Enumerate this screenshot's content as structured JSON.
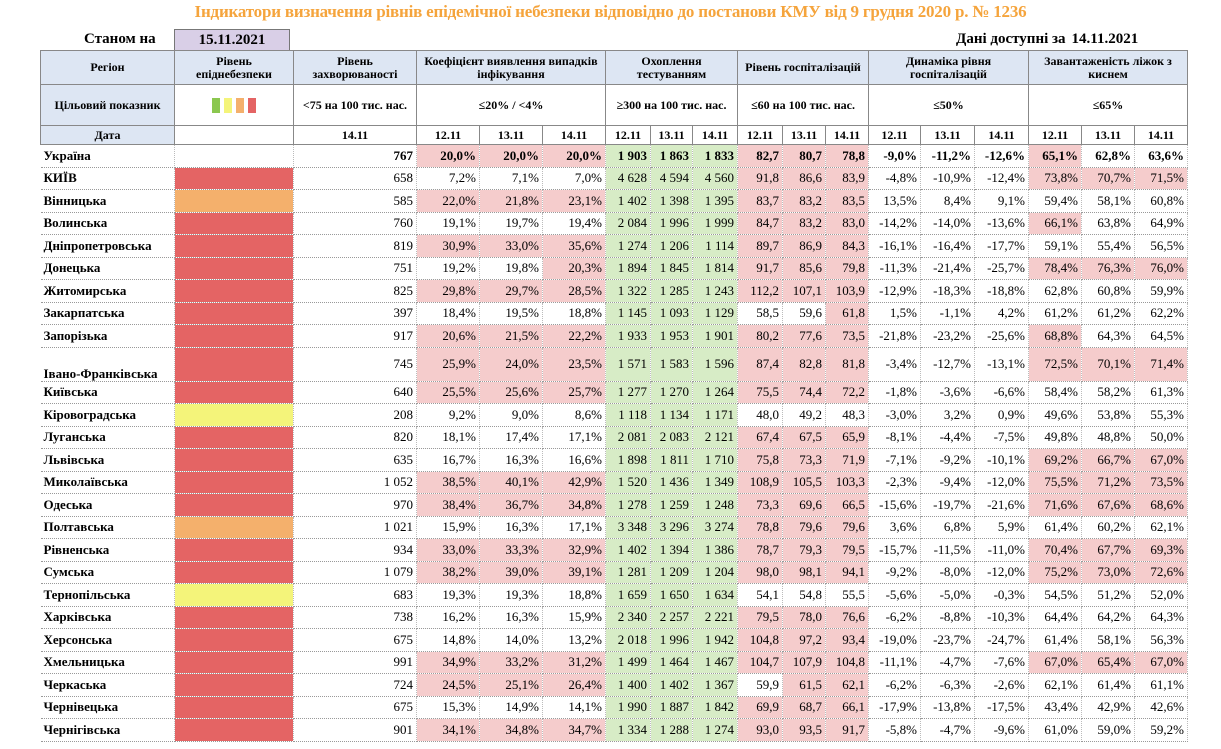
{
  "title": "Індикатори визначення рівнів епідемічної небезпеки відповідно до постанови КМУ від 9 грудня 2020 р. № 1236",
  "as_of_label": "Станом на",
  "as_of_date": "15.11.2021",
  "available_label": "Дані доступні за",
  "available_date": "14.11.2021",
  "headers": {
    "region": "Регіон",
    "level": "Рівень епіднебезпеки",
    "incidence": "Рівень захворюваності",
    "detection": "Коефіцієнт виявлення випадків інфікування",
    "testing": "Охоплення тестуванням",
    "hospitalization": "Рівень госпіталізацій",
    "hosp_dynamics": "Динаміка рівня госпіталізацій",
    "oxygen_beds": "Завантаженість ліжок з киснем"
  },
  "targets": {
    "label": "Цільовий показник",
    "incidence": "<75 на 100 тис. нас.",
    "detection": "≤20% / <4%",
    "testing": "≥300 на 100 тис. нас.",
    "hospitalization": "≤60 на 100 тис. нас.",
    "hosp_dynamics": "≤50%",
    "oxygen_beds": "≤65%"
  },
  "legend_colors": [
    "#8bc74f",
    "#f4f47a",
    "#f4b06c",
    "#e46464"
  ],
  "dates": {
    "label": "Дата",
    "incidence": "14.11",
    "triple": [
      "12.11",
      "13.11",
      "14.11"
    ]
  },
  "ukraine": {
    "name": "Україна",
    "incidence": "767",
    "det": [
      "20,0%",
      "20,0%",
      "20,0%"
    ],
    "test": [
      "1 903",
      "1 863",
      "1 833"
    ],
    "hosp": [
      "82,7",
      "80,7",
      "78,8"
    ],
    "dyn": [
      "-9,0%",
      "-11,2%",
      "-12,6%"
    ],
    "oxy": [
      "65,1%",
      "62,8%",
      "63,6%"
    ]
  },
  "rows": [
    {
      "name": "КИЇВ",
      "lvl": "red",
      "inc": "658",
      "det": [
        "7,2%",
        "7,1%",
        "7,0%"
      ],
      "test": [
        "4 628",
        "4 594",
        "4 560"
      ],
      "hosp": [
        "91,8",
        "86,6",
        "83,9"
      ],
      "dyn": [
        "-4,8%",
        "-10,9%",
        "-12,4%"
      ],
      "oxy": [
        "73,8%",
        "70,7%",
        "71,5%"
      ]
    },
    {
      "name": "Вінницька",
      "lvl": "orange",
      "inc": "585",
      "det": [
        "22,0%",
        "21,8%",
        "23,1%"
      ],
      "test": [
        "1 402",
        "1 398",
        "1 395"
      ],
      "hosp": [
        "83,7",
        "83,2",
        "83,5"
      ],
      "dyn": [
        "13,5%",
        "8,4%",
        "9,1%"
      ],
      "oxy": [
        "59,4%",
        "58,1%",
        "60,8%"
      ]
    },
    {
      "name": "Волинська",
      "lvl": "red",
      "inc": "760",
      "det": [
        "19,1%",
        "19,7%",
        "19,4%"
      ],
      "test": [
        "2 084",
        "1 996",
        "1 999"
      ],
      "hosp": [
        "84,7",
        "83,2",
        "83,0"
      ],
      "dyn": [
        "-14,2%",
        "-14,0%",
        "-13,6%"
      ],
      "oxy": [
        "66,1%",
        "63,8%",
        "64,9%"
      ]
    },
    {
      "name": "Дніпропетровська",
      "lvl": "red",
      "inc": "819",
      "det": [
        "30,9%",
        "33,0%",
        "35,6%"
      ],
      "test": [
        "1 274",
        "1 206",
        "1 114"
      ],
      "hosp": [
        "89,7",
        "86,9",
        "84,3"
      ],
      "dyn": [
        "-16,1%",
        "-16,4%",
        "-17,7%"
      ],
      "oxy": [
        "59,1%",
        "55,4%",
        "56,5%"
      ]
    },
    {
      "name": "Донецька",
      "lvl": "red",
      "inc": "751",
      "det": [
        "19,2%",
        "19,8%",
        "20,3%"
      ],
      "test": [
        "1 894",
        "1 845",
        "1 814"
      ],
      "hosp": [
        "91,7",
        "85,6",
        "79,8"
      ],
      "dyn": [
        "-11,3%",
        "-21,4%",
        "-25,7%"
      ],
      "oxy": [
        "78,4%",
        "76,3%",
        "76,0%"
      ]
    },
    {
      "name": "Житомирська",
      "lvl": "red",
      "inc": "825",
      "det": [
        "29,8%",
        "29,7%",
        "28,5%"
      ],
      "test": [
        "1 322",
        "1 285",
        "1 243"
      ],
      "hosp": [
        "112,2",
        "107,1",
        "103,9"
      ],
      "dyn": [
        "-12,9%",
        "-18,3%",
        "-18,8%"
      ],
      "oxy": [
        "62,8%",
        "60,8%",
        "59,9%"
      ]
    },
    {
      "name": "Закарпатська",
      "lvl": "red",
      "inc": "397",
      "det": [
        "18,4%",
        "19,5%",
        "18,8%"
      ],
      "test": [
        "1 145",
        "1 093",
        "1 129"
      ],
      "hosp": [
        "58,5",
        "59,6",
        "61,8"
      ],
      "dyn": [
        "1,5%",
        "-1,1%",
        "4,2%"
      ],
      "oxy": [
        "61,2%",
        "61,2%",
        "62,2%"
      ]
    },
    {
      "name": "Запорізька",
      "lvl": "red",
      "inc": "917",
      "det": [
        "20,6%",
        "21,5%",
        "22,2%"
      ],
      "test": [
        "1 933",
        "1 953",
        "1 901"
      ],
      "hosp": [
        "80,2",
        "77,6",
        "73,5"
      ],
      "dyn": [
        "-21,8%",
        "-23,2%",
        "-25,6%"
      ],
      "oxy": [
        "68,8%",
        "64,3%",
        "64,5%"
      ]
    },
    {
      "name": "Івано-Франківська",
      "lvl": "red",
      "inc": "745",
      "det": [
        "25,9%",
        "24,0%",
        "23,5%"
      ],
      "test": [
        "1 571",
        "1 583",
        "1 596"
      ],
      "hosp": [
        "87,4",
        "82,8",
        "81,8"
      ],
      "dyn": [
        "-3,4%",
        "-12,7%",
        "-13,1%"
      ],
      "oxy": [
        "72,5%",
        "70,1%",
        "71,4%"
      ],
      "tall": true
    },
    {
      "name": "Київська",
      "lvl": "red",
      "inc": "640",
      "det": [
        "25,5%",
        "25,6%",
        "25,7%"
      ],
      "test": [
        "1 277",
        "1 270",
        "1 264"
      ],
      "hosp": [
        "75,5",
        "74,4",
        "72,2"
      ],
      "dyn": [
        "-1,8%",
        "-3,6%",
        "-6,6%"
      ],
      "oxy": [
        "58,4%",
        "58,2%",
        "61,3%"
      ]
    },
    {
      "name": "Кіровоградська",
      "lvl": "yellow",
      "inc": "208",
      "det": [
        "9,2%",
        "9,0%",
        "8,6%"
      ],
      "test": [
        "1 118",
        "1 134",
        "1 171"
      ],
      "hosp": [
        "48,0",
        "49,2",
        "48,3"
      ],
      "dyn": [
        "-3,0%",
        "3,2%",
        "0,9%"
      ],
      "oxy": [
        "49,6%",
        "53,8%",
        "55,3%"
      ]
    },
    {
      "name": "Луганська",
      "lvl": "red",
      "inc": "820",
      "det": [
        "18,1%",
        "17,4%",
        "17,1%"
      ],
      "test": [
        "2 081",
        "2 083",
        "2 121"
      ],
      "hosp": [
        "67,4",
        "67,5",
        "65,9"
      ],
      "dyn": [
        "-8,1%",
        "-4,4%",
        "-7,5%"
      ],
      "oxy": [
        "49,8%",
        "48,8%",
        "50,0%"
      ]
    },
    {
      "name": "Львівська",
      "lvl": "red",
      "inc": "635",
      "det": [
        "16,7%",
        "16,3%",
        "16,6%"
      ],
      "test": [
        "1 898",
        "1 811",
        "1 710"
      ],
      "hosp": [
        "75,8",
        "73,3",
        "71,9"
      ],
      "dyn": [
        "-7,1%",
        "-9,2%",
        "-10,1%"
      ],
      "oxy": [
        "69,2%",
        "66,7%",
        "67,0%"
      ]
    },
    {
      "name": "Миколаївська",
      "lvl": "red",
      "inc": "1 052",
      "det": [
        "38,5%",
        "40,1%",
        "42,9%"
      ],
      "test": [
        "1 520",
        "1 436",
        "1 349"
      ],
      "hosp": [
        "108,9",
        "105,5",
        "103,3"
      ],
      "dyn": [
        "-2,3%",
        "-9,4%",
        "-12,0%"
      ],
      "oxy": [
        "75,5%",
        "71,2%",
        "73,5%"
      ]
    },
    {
      "name": "Одеська",
      "lvl": "red",
      "inc": "970",
      "det": [
        "38,4%",
        "36,7%",
        "34,8%"
      ],
      "test": [
        "1 278",
        "1 259",
        "1 248"
      ],
      "hosp": [
        "73,3",
        "69,6",
        "66,5"
      ],
      "dyn": [
        "-15,6%",
        "-19,7%",
        "-21,6%"
      ],
      "oxy": [
        "71,6%",
        "67,6%",
        "68,6%"
      ]
    },
    {
      "name": "Полтавська",
      "lvl": "orange",
      "inc": "1 021",
      "det": [
        "15,9%",
        "16,3%",
        "17,1%"
      ],
      "test": [
        "3 348",
        "3 296",
        "3 274"
      ],
      "hosp": [
        "78,8",
        "79,6",
        "79,6"
      ],
      "dyn": [
        "3,6%",
        "6,8%",
        "5,9%"
      ],
      "oxy": [
        "61,4%",
        "60,2%",
        "62,1%"
      ]
    },
    {
      "name": "Рівненська",
      "lvl": "red",
      "inc": "934",
      "det": [
        "33,0%",
        "33,3%",
        "32,9%"
      ],
      "test": [
        "1 402",
        "1 394",
        "1 386"
      ],
      "hosp": [
        "78,7",
        "79,3",
        "79,5"
      ],
      "dyn": [
        "-15,7%",
        "-11,5%",
        "-11,0%"
      ],
      "oxy": [
        "70,4%",
        "67,7%",
        "69,3%"
      ]
    },
    {
      "name": "Сумська",
      "lvl": "red",
      "inc": "1 079",
      "det": [
        "38,2%",
        "39,0%",
        "39,1%"
      ],
      "test": [
        "1 281",
        "1 209",
        "1 204"
      ],
      "hosp": [
        "98,0",
        "98,1",
        "94,1"
      ],
      "dyn": [
        "-9,2%",
        "-8,0%",
        "-12,0%"
      ],
      "oxy": [
        "75,2%",
        "73,0%",
        "72,6%"
      ]
    },
    {
      "name": "Тернопільська",
      "lvl": "yellow",
      "inc": "683",
      "det": [
        "19,3%",
        "19,3%",
        "18,8%"
      ],
      "test": [
        "1 659",
        "1 650",
        "1 634"
      ],
      "hosp": [
        "54,1",
        "54,8",
        "55,5"
      ],
      "dyn": [
        "-5,6%",
        "-5,0%",
        "-0,3%"
      ],
      "oxy": [
        "54,5%",
        "51,2%",
        "52,0%"
      ]
    },
    {
      "name": "Харківська",
      "lvl": "red",
      "inc": "738",
      "det": [
        "16,2%",
        "16,3%",
        "15,9%"
      ],
      "test": [
        "2 340",
        "2 257",
        "2 221"
      ],
      "hosp": [
        "79,5",
        "78,0",
        "76,6"
      ],
      "dyn": [
        "-6,2%",
        "-8,8%",
        "-10,3%"
      ],
      "oxy": [
        "64,4%",
        "64,2%",
        "64,3%"
      ]
    },
    {
      "name": "Херсонська",
      "lvl": "red",
      "inc": "675",
      "det": [
        "14,8%",
        "14,0%",
        "13,2%"
      ],
      "test": [
        "2 018",
        "1 996",
        "1 942"
      ],
      "hosp": [
        "104,8",
        "97,2",
        "93,4"
      ],
      "dyn": [
        "-19,0%",
        "-23,7%",
        "-24,7%"
      ],
      "oxy": [
        "61,4%",
        "58,1%",
        "56,3%"
      ]
    },
    {
      "name": "Хмельницька",
      "lvl": "red",
      "inc": "991",
      "det": [
        "34,9%",
        "33,2%",
        "31,2%"
      ],
      "test": [
        "1 499",
        "1 464",
        "1 467"
      ],
      "hosp": [
        "104,7",
        "107,9",
        "104,8"
      ],
      "dyn": [
        "-11,1%",
        "-4,7%",
        "-7,6%"
      ],
      "oxy": [
        "67,0%",
        "65,4%",
        "67,0%"
      ]
    },
    {
      "name": "Черкаська",
      "lvl": "red",
      "inc": "724",
      "det": [
        "24,5%",
        "25,1%",
        "26,4%"
      ],
      "test": [
        "1 400",
        "1 402",
        "1 367"
      ],
      "hosp": [
        "59,9",
        "61,5",
        "62,1"
      ],
      "dyn": [
        "-6,2%",
        "-6,3%",
        "-2,6%"
      ],
      "oxy": [
        "62,1%",
        "61,4%",
        "61,1%"
      ]
    },
    {
      "name": "Чернівецька",
      "lvl": "red",
      "inc": "675",
      "det": [
        "15,3%",
        "14,9%",
        "14,1%"
      ],
      "test": [
        "1 990",
        "1 887",
        "1 842"
      ],
      "hosp": [
        "69,9",
        "68,7",
        "66,1"
      ],
      "dyn": [
        "-17,9%",
        "-13,8%",
        "-17,5%"
      ],
      "oxy": [
        "43,4%",
        "42,9%",
        "42,6%"
      ]
    },
    {
      "name": "Чернігівська",
      "lvl": "red",
      "inc": "901",
      "det": [
        "34,1%",
        "34,8%",
        "34,7%"
      ],
      "test": [
        "1 334",
        "1 288",
        "1 274"
      ],
      "hosp": [
        "93,0",
        "93,5",
        "91,7"
      ],
      "dyn": [
        "-5,8%",
        "-4,7%",
        "-9,6%"
      ],
      "oxy": [
        "61,0%",
        "59,0%",
        "59,2%"
      ]
    }
  ]
}
